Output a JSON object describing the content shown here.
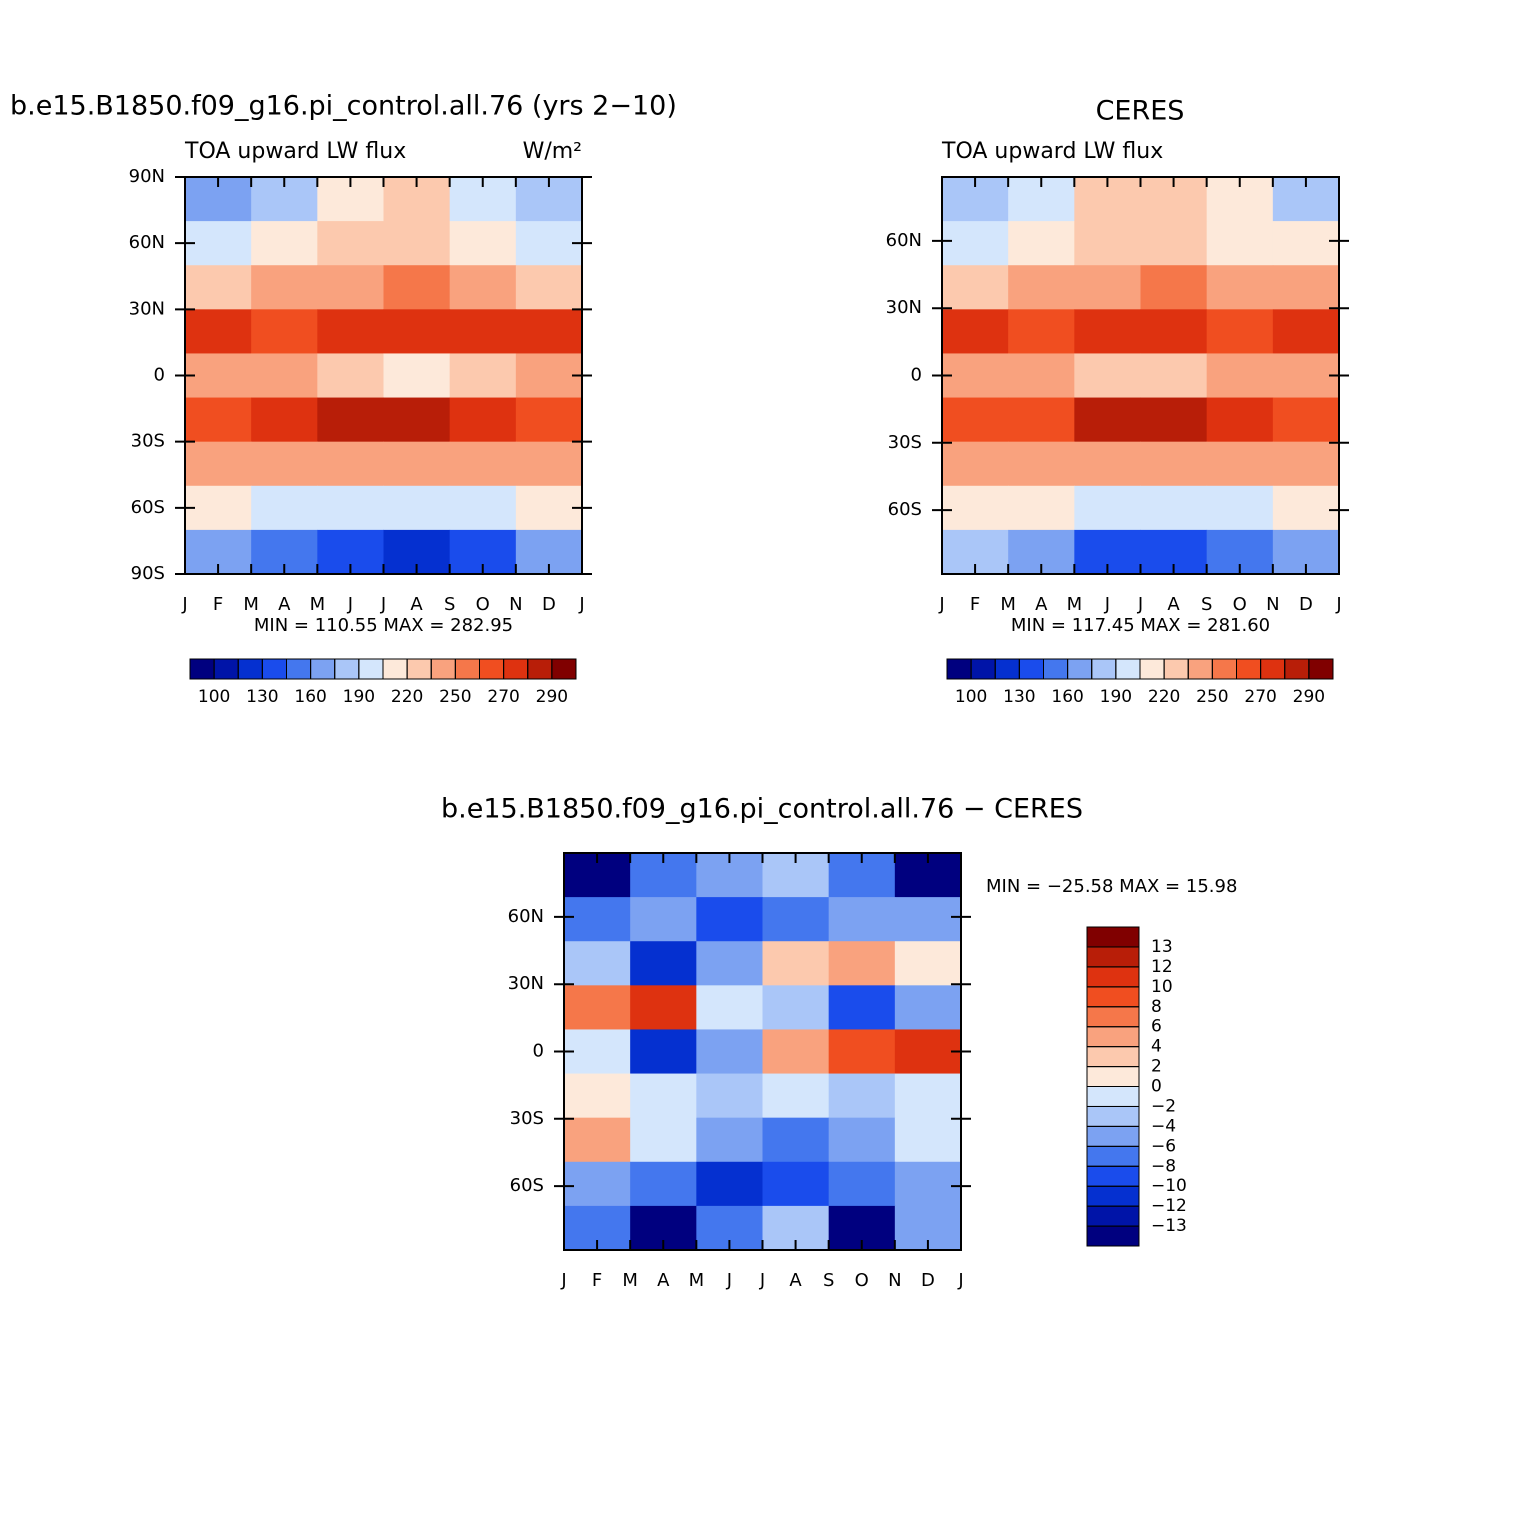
{
  "chart_data": [
    {
      "type": "contour",
      "title": "b.e15.B1850.f09_g16.pi_control.all.76 (yrs 2−10)",
      "left_string": "TOA upward LW flux",
      "right_string": "W/m²",
      "stats": "MIN = 110.55 MAX = 282.95",
      "categories": [
        "J",
        "F",
        "M",
        "A",
        "M",
        "J",
        "J",
        "A",
        "S",
        "O",
        "N",
        "D",
        "J"
      ],
      "ylim": [
        -90,
        90
      ],
      "yticks": [
        {
          "value": 90,
          "label": "90N"
        },
        {
          "value": 60,
          "label": "60N"
        },
        {
          "value": 30,
          "label": "30N"
        },
        0,
        {
          "value": -30,
          "label": "30S"
        },
        {
          "value": -60,
          "label": "60S"
        },
        {
          "value": -90,
          "label": "90S"
        }
      ],
      "z": [
        [
          170,
          185,
          215,
          220,
          200,
          175
        ],
        [
          195,
          205,
          225,
          230,
          215,
          200
        ],
        [
          225,
          235,
          245,
          250,
          240,
          230
        ],
        [
          275,
          268,
          272,
          278,
          272,
          275
        ],
        [
          240,
          245,
          220,
          215,
          225,
          240
        ],
        [
          265,
          270,
          285,
          288,
          278,
          265
        ],
        [
          240,
          238,
          236,
          235,
          237,
          240
        ],
        [
          205,
          200,
          195,
          192,
          198,
          205
        ],
        [
          165,
          150,
          130,
          125,
          140,
          160
        ]
      ],
      "levels": [
        100,
        115,
        130,
        145,
        160,
        175,
        190,
        205,
        220,
        235,
        250,
        260,
        270,
        280,
        290
      ],
      "colors": [
        "#00007f",
        "#0014a8",
        "#0530d0",
        "#1a4cec",
        "#4477ee",
        "#7ca2f2",
        "#aac6f8",
        "#d4e6fc",
        "#fde9da",
        "#fcc9ae",
        "#f9a27e",
        "#f5774a",
        "#f04e20",
        "#de3210",
        "#b81e08",
        "#800000"
      ],
      "colorbar": "horizontal"
    },
    {
      "type": "contour",
      "title": "CERES",
      "left_string": "TOA upward LW flux",
      "stats": "MIN = 117.45 MAX = 281.60",
      "categories": [
        "J",
        "F",
        "M",
        "A",
        "M",
        "J",
        "J",
        "A",
        "S",
        "O",
        "N",
        "D",
        "J"
      ],
      "ylim": [
        -88.5,
        88.5
      ],
      "yticks": [
        {
          "value": 60,
          "label": "60N"
        },
        {
          "value": 30,
          "label": "30N"
        },
        0,
        {
          "value": -30,
          "label": "30S"
        },
        {
          "value": -60,
          "label": "60S"
        }
      ],
      "z": [
        [
          185,
          195,
          220,
          225,
          205,
          185
        ],
        [
          200,
          210,
          228,
          232,
          218,
          205
        ],
        [
          230,
          238,
          248,
          252,
          243,
          235
        ],
        [
          272,
          265,
          270,
          275,
          268,
          272
        ],
        [
          245,
          245,
          230,
          228,
          235,
          245
        ],
        [
          262,
          268,
          282,
          285,
          275,
          262
        ],
        [
          240,
          238,
          237,
          236,
          238,
          240
        ],
        [
          210,
          205,
          200,
          198,
          203,
          210
        ],
        [
          175,
          160,
          140,
          135,
          150,
          170
        ]
      ],
      "levels": [
        100,
        115,
        130,
        145,
        160,
        175,
        190,
        205,
        220,
        235,
        250,
        260,
        270,
        280,
        290
      ],
      "colors": [
        "#00007f",
        "#0014a8",
        "#0530d0",
        "#1a4cec",
        "#4477ee",
        "#7ca2f2",
        "#aac6f8",
        "#d4e6fc",
        "#fde9da",
        "#fcc9ae",
        "#f9a27e",
        "#f5774a",
        "#f04e20",
        "#de3210",
        "#b81e08",
        "#800000"
      ],
      "colorbar": "horizontal"
    },
    {
      "type": "contour",
      "title": "b.e15.B1850.f09_g16.pi_control.all.76 − CERES",
      "stats": "MIN = −25.58 MAX =   15.98",
      "categories": [
        "J",
        "F",
        "M",
        "A",
        "M",
        "J",
        "J",
        "A",
        "S",
        "O",
        "N",
        "D",
        "J"
      ],
      "ylim": [
        -88.5,
        88.5
      ],
      "yticks": [
        {
          "value": 60,
          "label": "60N"
        },
        {
          "value": 30,
          "label": "30N"
        },
        0,
        {
          "value": -30,
          "label": "30S"
        },
        {
          "value": -60,
          "label": "60S"
        }
      ],
      "z": [
        [
          -15,
          -8,
          -6,
          -4,
          -8,
          -14
        ],
        [
          -8,
          -6,
          -10,
          -8,
          -5,
          -6
        ],
        [
          -4,
          -12,
          -6,
          3,
          5,
          1
        ],
        [
          6,
          10,
          -2,
          -4,
          -10,
          -6
        ],
        [
          -2,
          -12,
          -6,
          4,
          8,
          10
        ],
        [
          0,
          -2,
          -4,
          -2,
          -4,
          -2
        ],
        [
          4,
          -2,
          -6,
          -8,
          -6,
          -2
        ],
        [
          -6,
          -8,
          -12,
          -10,
          -8,
          -6
        ],
        [
          -8,
          -15,
          -8,
          -4,
          -14,
          -6
        ]
      ],
      "levels": [
        {
          "value": -13,
          "label": "−13"
        },
        {
          "value": -12,
          "label": "−12"
        },
        {
          "value": -10,
          "label": "−10"
        },
        {
          "value": -8,
          "label": "−8"
        },
        {
          "value": -6,
          "label": "−6"
        },
        {
          "value": -4,
          "label": "−4"
        },
        {
          "value": -2,
          "label": "−2"
        },
        0,
        2,
        4,
        6,
        8,
        10,
        12,
        13
      ],
      "colors": [
        "#00007f",
        "#0014a8",
        "#0530d0",
        "#1a4cec",
        "#4477ee",
        "#7ca2f2",
        "#aac6f8",
        "#d4e6fc",
        "#fde9da",
        "#fcc9ae",
        "#f9a27e",
        "#f5774a",
        "#f04e20",
        "#de3210",
        "#b81e08",
        "#800000"
      ],
      "colorbar": "vertical"
    }
  ]
}
